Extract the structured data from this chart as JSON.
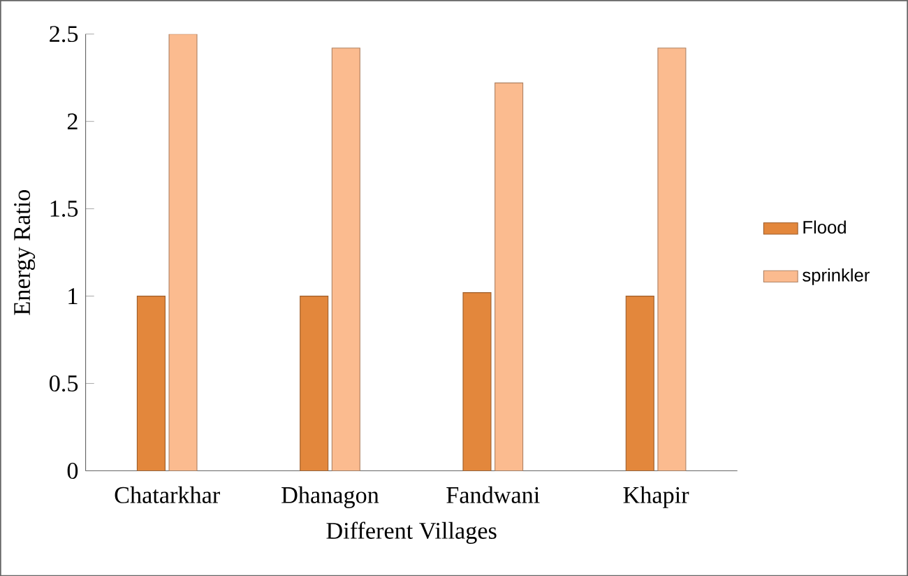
{
  "chart_data": {
    "type": "bar",
    "xlabel": "Different Villages",
    "ylabel": "Energy Ratio",
    "categories": [
      "Chatarkhar",
      "Dhanagon",
      "Fandwani",
      "Khapir"
    ],
    "series": [
      {
        "name": "Flood",
        "color": "#e3873c",
        "values": [
          1.0,
          1.0,
          1.02,
          1.0
        ]
      },
      {
        "name": "sprinkler",
        "color": "#fbbb8f",
        "values": [
          2.5,
          2.42,
          2.22,
          2.42
        ]
      }
    ],
    "ylim": [
      0,
      2.5
    ],
    "yticks": [
      0,
      0.5,
      1,
      1.5,
      2,
      2.5
    ],
    "grid": false,
    "legend": "right"
  }
}
